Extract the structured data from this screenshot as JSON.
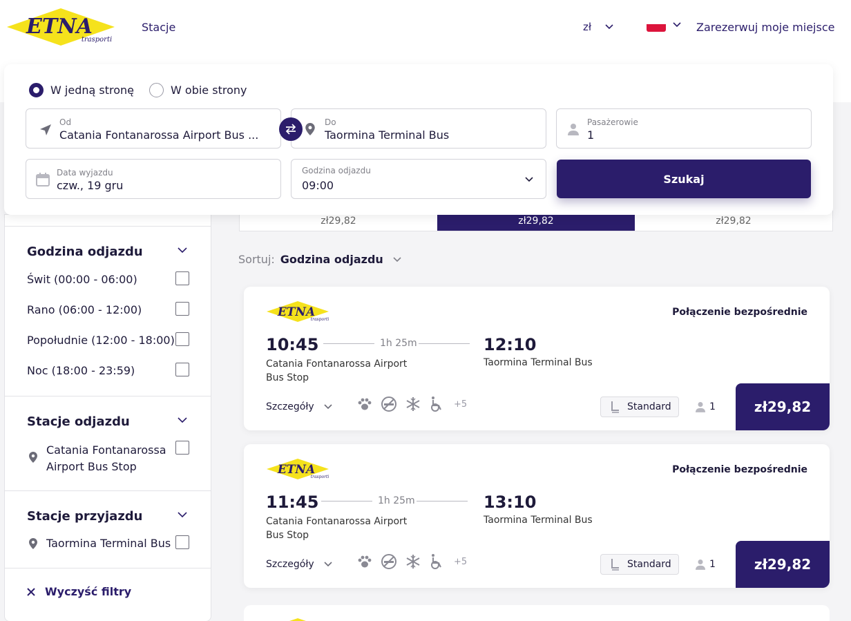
{
  "header": {
    "logo_text": "ETNA",
    "logo_sub": "trasporti",
    "nav_stations": "Stacje",
    "currency": "zł",
    "reserve": "Zarezerwuj moje miejsce"
  },
  "search": {
    "one_way": "W jedną stronę",
    "round_trip": "W obie strony",
    "from_label": "Od",
    "from_value": "Catania Fontanarossa Airport Bus ...",
    "to_label": "Do",
    "to_value": "Taormina Terminal Bus",
    "pax_label": "Pasażerowie",
    "pax_value": "1",
    "date_label": "Data wyjazdu",
    "date_value": "czw., 19 gru",
    "time_label": "Godzina odjazdu",
    "time_value": "09:00",
    "search_button": "Szukaj"
  },
  "price_strip": [
    "zł29,82",
    "zł29,82",
    "zł29,82"
  ],
  "filters": {
    "departure_time": {
      "title": "Godzina odjazdu",
      "options": [
        "Świt (00:00 - 06:00)",
        "Rano (06:00 - 12:00)",
        "Popołudnie (12:00 - 18:00)",
        "Noc (18:00 - 23:59)"
      ]
    },
    "departure_stations": {
      "title": "Stacje odjazdu",
      "line1": "Catania Fontanarossa",
      "line2": "Airport Bus Stop"
    },
    "arrival_stations": {
      "title": "Stacje przyjazdu",
      "station": "Taormina Terminal Bus"
    },
    "clear": "Wyczyść filtry"
  },
  "sort": {
    "label": "Sortuj:",
    "value": "Godzina odjazdu"
  },
  "trips": [
    {
      "direct": "Połączenie bezpośrednie",
      "dep_time": "10:45",
      "duration": "1h 25m",
      "arr_time": "12:10",
      "from_line1": "Catania Fontanarossa Airport",
      "from_line2": "Bus Stop",
      "to": "Taormina Terminal Bus",
      "details": "Szczegóły",
      "more_amenities": "+5",
      "class": "Standard",
      "pax": "1",
      "price": "zł29,82"
    },
    {
      "direct": "Połączenie bezpośrednie",
      "dep_time": "11:45",
      "duration": "1h 25m",
      "arr_time": "13:10",
      "from_line1": "Catania Fontanarossa Airport",
      "from_line2": "Bus Stop",
      "to": "Taormina Terminal Bus",
      "details": "Szczegóły",
      "more_amenities": "+5",
      "class": "Standard",
      "pax": "1",
      "price": "zł29,82"
    }
  ],
  "colors": {
    "primary": "#2b1d6b",
    "logo_yellow": "#f5e21c",
    "flag_red": "#dc143c"
  }
}
